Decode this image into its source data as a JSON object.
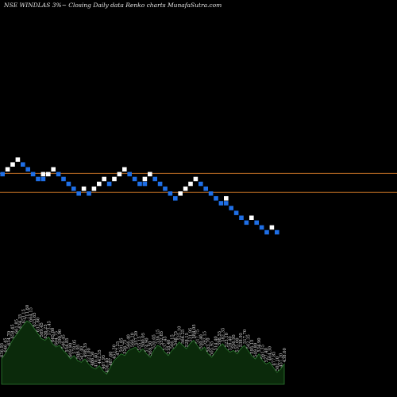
{
  "chart_data": {
    "type": "renko",
    "title": "NSE WINDLAS 3%~  Closing Daily data  Renko  charts MunafaSutra.com",
    "colors": {
      "up_brick": "#ffffff",
      "down_brick": "#1f6fe6",
      "reference_line": "#b86a22",
      "volume_fill": "#0b2a0b",
      "volume_stroke": "#2e7d32",
      "background": "#000000"
    },
    "bricks": [
      {
        "col": 0,
        "level": 4,
        "dir": "down"
      },
      {
        "col": 1,
        "level": 5,
        "dir": "up"
      },
      {
        "col": 2,
        "level": 6,
        "dir": "up"
      },
      {
        "col": 3,
        "level": 7,
        "dir": "up"
      },
      {
        "col": 4,
        "level": 6,
        "dir": "down"
      },
      {
        "col": 5,
        "level": 5,
        "dir": "down"
      },
      {
        "col": 6,
        "level": 4,
        "dir": "down"
      },
      {
        "col": 7,
        "level": 3,
        "dir": "down"
      },
      {
        "col": 8,
        "level": 4,
        "dir": "up"
      },
      {
        "col": 8,
        "level": 3,
        "dir": "down"
      },
      {
        "col": 9,
        "level": 4,
        "dir": "up"
      },
      {
        "col": 10,
        "level": 5,
        "dir": "up"
      },
      {
        "col": 11,
        "level": 4,
        "dir": "down"
      },
      {
        "col": 12,
        "level": 3,
        "dir": "down"
      },
      {
        "col": 13,
        "level": 2,
        "dir": "down"
      },
      {
        "col": 14,
        "level": 1,
        "dir": "down"
      },
      {
        "col": 15,
        "level": 0,
        "dir": "down"
      },
      {
        "col": 16,
        "level": 1,
        "dir": "up"
      },
      {
        "col": 17,
        "level": 0,
        "dir": "down"
      },
      {
        "col": 18,
        "level": 1,
        "dir": "up"
      },
      {
        "col": 19,
        "level": 2,
        "dir": "up"
      },
      {
        "col": 20,
        "level": 3,
        "dir": "up"
      },
      {
        "col": 21,
        "level": 2,
        "dir": "down"
      },
      {
        "col": 22,
        "level": 3,
        "dir": "up"
      },
      {
        "col": 23,
        "level": 4,
        "dir": "up"
      },
      {
        "col": 24,
        "level": 5,
        "dir": "up"
      },
      {
        "col": 25,
        "level": 4,
        "dir": "down"
      },
      {
        "col": 26,
        "level": 3,
        "dir": "down"
      },
      {
        "col": 27,
        "level": 2,
        "dir": "down"
      },
      {
        "col": 28,
        "level": 3,
        "dir": "up"
      },
      {
        "col": 28,
        "level": 2,
        "dir": "down"
      },
      {
        "col": 29,
        "level": 4,
        "dir": "up"
      },
      {
        "col": 30,
        "level": 3,
        "dir": "down"
      },
      {
        "col": 31,
        "level": 2,
        "dir": "down"
      },
      {
        "col": 32,
        "level": 1,
        "dir": "down"
      },
      {
        "col": 33,
        "level": 0,
        "dir": "down"
      },
      {
        "col": 34,
        "level": -1,
        "dir": "down"
      },
      {
        "col": 35,
        "level": 0,
        "dir": "up"
      },
      {
        "col": 36,
        "level": 1,
        "dir": "up"
      },
      {
        "col": 37,
        "level": 2,
        "dir": "up"
      },
      {
        "col": 38,
        "level": 3,
        "dir": "up"
      },
      {
        "col": 39,
        "level": 2,
        "dir": "down"
      },
      {
        "col": 40,
        "level": 1,
        "dir": "down"
      },
      {
        "col": 41,
        "level": 0,
        "dir": "down"
      },
      {
        "col": 42,
        "level": -1,
        "dir": "down"
      },
      {
        "col": 43,
        "level": -2,
        "dir": "down"
      },
      {
        "col": 44,
        "level": -1,
        "dir": "up"
      },
      {
        "col": 44,
        "level": -2,
        "dir": "down"
      },
      {
        "col": 45,
        "level": -3,
        "dir": "down"
      },
      {
        "col": 46,
        "level": -4,
        "dir": "down"
      },
      {
        "col": 47,
        "level": -5,
        "dir": "down"
      },
      {
        "col": 48,
        "level": -6,
        "dir": "down"
      },
      {
        "col": 49,
        "level": -5,
        "dir": "up"
      },
      {
        "col": 50,
        "level": -6,
        "dir": "down"
      },
      {
        "col": 51,
        "level": -7,
        "dir": "down"
      },
      {
        "col": 52,
        "level": -8,
        "dir": "down"
      },
      {
        "col": 53,
        "level": -7,
        "dir": "up"
      },
      {
        "col": 54,
        "level": -8,
        "dir": "down"
      }
    ],
    "reference_lines": [
      {
        "name": "upper",
        "level": 4.2
      },
      {
        "name": "lower",
        "level": 0.3
      }
    ],
    "volume": {
      "values": [
        30,
        36,
        44,
        52,
        58,
        64,
        70,
        75,
        72,
        66,
        60,
        54,
        52,
        56,
        48,
        44,
        46,
        40,
        36,
        30,
        34,
        28,
        26,
        30,
        24,
        20,
        18,
        22,
        16,
        12,
        20,
        28,
        32,
        36,
        34,
        40,
        42,
        44,
        38,
        42,
        36,
        32,
        40,
        46,
        44,
        38,
        34,
        40,
        44,
        50,
        46,
        42,
        48,
        52,
        46,
        40,
        44,
        36,
        32,
        38,
        44,
        48,
        42,
        38,
        40,
        36,
        42,
        46,
        40,
        34,
        30,
        36,
        28,
        24,
        26,
        20,
        14,
        18,
        24
      ],
      "labels": [
        "636.95",
        "646.45",
        "634.70",
        "658.45",
        "661.85",
        "634.35",
        "653.15",
        "711.60",
        "664.15",
        "623.65",
        "632.80",
        "589.45",
        "636.25",
        "573.45",
        "665.80",
        "604.75",
        "590.90",
        "546.45",
        "554.85",
        "609.90",
        "578.05",
        "506.95",
        "547.40",
        "498.35",
        "523.00",
        "486.50",
        "470.40",
        "442.35",
        "467.95",
        "456.40",
        "487.60",
        "452.30",
        "477.25",
        "501.85",
        "526.75",
        "566.40",
        "566.20",
        "557.20",
        "555.15",
        "500.05",
        "574.90",
        "569.50",
        "520.05",
        "536.15",
        "552.65",
        "537.45",
        "518.40",
        "566.15",
        "548.75",
        "525.10",
        "564.25",
        "528.15",
        "531.95",
        "584.05",
        "517.75",
        "550.40",
        "592.15",
        "583.70",
        "505.95",
        "514.40",
        "598.55",
        "582.35",
        "523.10",
        "528.40",
        "556.95",
        "535.00",
        "538.95",
        "517.70",
        "562.35",
        "595.15",
        "549.80",
        "534.90",
        "561.35",
        "527.40",
        "464.30",
        "477.85",
        "502.10",
        "457.20",
        "438.60"
      ]
    }
  }
}
